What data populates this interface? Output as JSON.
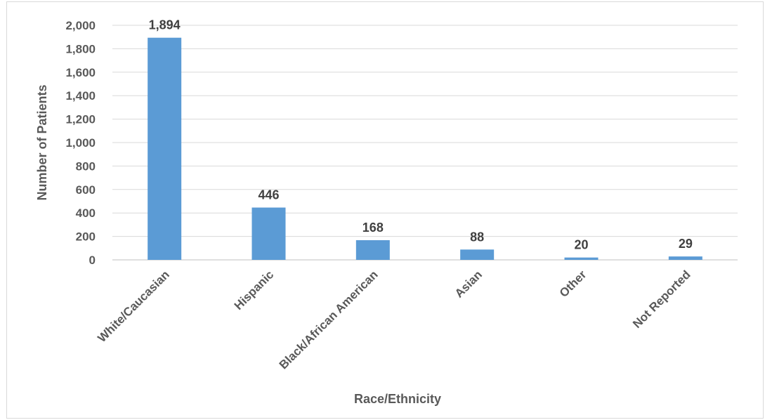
{
  "chart_data": {
    "type": "bar",
    "title": "",
    "xlabel": "Race/Ethnicity",
    "ylabel": "Number of Patients",
    "categories": [
      "White/Caucasian",
      "Hispanic",
      "Black/African American",
      "Asian",
      "Other",
      "Not Reported"
    ],
    "values": [
      1894,
      446,
      168,
      88,
      20,
      29
    ],
    "value_labels": [
      "1,894",
      "446",
      "168",
      "88",
      "20",
      "29"
    ],
    "ylim": [
      0,
      2000
    ],
    "yticks": [
      0,
      200,
      400,
      600,
      800,
      1000,
      1200,
      1400,
      1600,
      1800,
      2000
    ],
    "ytick_labels": [
      "0",
      "200",
      "400",
      "600",
      "800",
      "1,000",
      "1,200",
      "1,400",
      "1,600",
      "1,800",
      "2,000"
    ],
    "grid": true,
    "legend": "none",
    "bar_color": "#5b9bd5"
  }
}
